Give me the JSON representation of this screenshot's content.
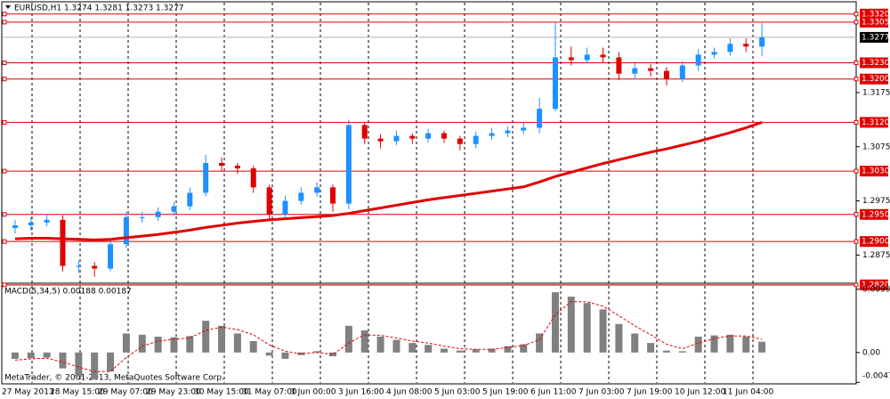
{
  "chart_data": {
    "type": "candlestick",
    "title": "EURUSD,H1  1.3274 1.3281 1.3273 1.3277",
    "ylim": [
      1.2823,
      1.3341
    ],
    "yticks": [
      1.2875,
      1.2975,
      1.3075,
      1.3175
    ],
    "last_price": 1.3277,
    "levels": [
      {
        "value": 1.332,
        "label": "1.3320"
      },
      {
        "value": 1.3305,
        "label": "1.3305"
      },
      {
        "value": 1.323,
        "label": "1.3230"
      },
      {
        "value": 1.32,
        "label": "1.3200"
      },
      {
        "value": 1.312,
        "label": "1.3120"
      },
      {
        "value": 1.303,
        "label": "1.3030"
      },
      {
        "value": 1.295,
        "label": "1.2950"
      },
      {
        "value": 1.29,
        "label": "1.2900"
      },
      {
        "value": 1.282,
        "label": "1.2820"
      }
    ],
    "level_color": "#e00000",
    "up_color": "#1e90ff",
    "down_color": "#e00000",
    "ma_color": "#e00000",
    "categories": [
      "27 May 2013",
      "28 May 15:00",
      "29 May 07:00",
      "29 May 23:00",
      "30 May 15:00",
      "31 May 07:00",
      "3 Jun 00:00",
      "3 Jun 16:00",
      "4 Jun 08:00",
      "5 Jun 03:00",
      "5 Jun 19:00",
      "6 Jun 11:00",
      "7 Jun 03:00",
      "7 Jun 19:00",
      "10 Jun 12:00",
      "11 Jun 04:00"
    ],
    "open": [
      1.2925,
      1.293,
      1.2935,
      1.294,
      1.2855,
      1.2855,
      1.285,
      1.2895,
      1.2945,
      1.2945,
      1.2955,
      1.2965,
      1.299,
      1.3045,
      1.304,
      1.3035,
      1.3,
      1.295,
      1.2975,
      1.299,
      1.3,
      1.297,
      1.3115,
      1.309,
      1.3085,
      1.3095,
      1.309,
      1.31,
      1.309,
      1.308,
      1.3095,
      1.31,
      1.3105,
      1.311,
      1.3145,
      1.324,
      1.3235,
      1.3245,
      1.324,
      1.321,
      1.322,
      1.3215,
      1.32,
      1.3225,
      1.3245,
      1.325,
      1.3265,
      1.326
    ],
    "high": [
      1.294,
      1.2945,
      1.295,
      1.2948,
      1.2865,
      1.2862,
      1.2905,
      1.2955,
      1.2955,
      1.2963,
      1.2973,
      1.3,
      1.306,
      1.3055,
      1.3045,
      1.304,
      1.3005,
      1.2985,
      1.3,
      1.301,
      1.3005,
      1.3125,
      1.312,
      1.3098,
      1.3105,
      1.31,
      1.3108,
      1.3105,
      1.3095,
      1.3103,
      1.311,
      1.3113,
      1.312,
      1.3165,
      1.3305,
      1.326,
      1.3258,
      1.3258,
      1.325,
      1.323,
      1.3228,
      1.3222,
      1.3233,
      1.3255,
      1.3258,
      1.3275,
      1.3275,
      1.3303
    ],
    "low": [
      1.2915,
      1.292,
      1.2928,
      1.2845,
      1.2842,
      1.2835,
      1.2845,
      1.2888,
      1.2935,
      1.2938,
      1.2948,
      1.2958,
      1.2983,
      1.303,
      1.3025,
      1.299,
      1.2942,
      1.2945,
      1.2968,
      1.2983,
      1.2955,
      1.296,
      1.308,
      1.3072,
      1.3078,
      1.308,
      1.3083,
      1.3082,
      1.3068,
      1.3072,
      1.3088,
      1.3093,
      1.3098,
      1.31,
      1.314,
      1.3225,
      1.3228,
      1.323,
      1.3198,
      1.32,
      1.3205,
      1.3188,
      1.3195,
      1.3215,
      1.3238,
      1.3243,
      1.325,
      1.3243
    ],
    "close": [
      1.293,
      1.2935,
      1.294,
      1.2855,
      1.2855,
      1.285,
      1.2895,
      1.2945,
      1.2945,
      1.2955,
      1.2965,
      1.299,
      1.3045,
      1.304,
      1.3035,
      1.3,
      1.295,
      1.2975,
      1.299,
      1.3,
      1.297,
      1.3115,
      1.309,
      1.3085,
      1.3095,
      1.309,
      1.31,
      1.309,
      1.308,
      1.3095,
      1.31,
      1.3105,
      1.311,
      1.3145,
      1.324,
      1.3235,
      1.3245,
      1.324,
      1.321,
      1.322,
      1.3215,
      1.32,
      1.3225,
      1.3245,
      1.325,
      1.3265,
      1.326,
      1.3277
    ],
    "ma": [
      1.2905,
      1.2906,
      1.2906,
      1.2905,
      1.2904,
      1.2903,
      1.2904,
      1.2907,
      1.291,
      1.2913,
      1.2917,
      1.2921,
      1.2926,
      1.293,
      1.2934,
      1.2937,
      1.294,
      1.2942,
      1.2944,
      1.2946,
      1.2948,
      1.2952,
      1.2957,
      1.2962,
      1.2967,
      1.2972,
      1.2977,
      1.2981,
      1.2985,
      1.2989,
      1.2993,
      1.2997,
      1.3001,
      1.301,
      1.302,
      1.3028,
      1.3036,
      1.3044,
      1.3051,
      1.3058,
      1.3065,
      1.3071,
      1.3078,
      1.3085,
      1.3093,
      1.3101,
      1.311,
      1.312
    ],
    "macd": {
      "title": "MACD(5,34,5) 0.00188 0.00187",
      "ylim": [
        -0.0048,
        0.0105
      ],
      "yticks": [
        0.00997,
        {
          "value": 0,
          "label": "0.00"
        },
        -0.00471
      ],
      "hist_color": "#808080",
      "signal_color": "#e00000",
      "hist": [
        -0.001,
        -0.0009,
        -0.0008,
        -0.0025,
        -0.0038,
        -0.0042,
        -0.003,
        0.003,
        0.0028,
        0.0025,
        0.0024,
        0.0026,
        0.005,
        0.0042,
        0.003,
        0.0018,
        -0.0005,
        -0.001,
        -0.0004,
        0.0002,
        -0.0006,
        0.0042,
        0.0035,
        0.0025,
        0.002,
        0.0015,
        0.0012,
        0.0006,
        0.0003,
        0.0005,
        0.0006,
        0.001,
        0.0013,
        0.003,
        0.0095,
        0.0088,
        0.0078,
        0.0068,
        0.0045,
        0.003,
        0.0015,
        0.0003,
        0.0002,
        0.0025,
        0.0027,
        0.0028,
        0.0025,
        0.0017
      ],
      "signal": [
        -0.0012,
        -0.001,
        -0.0009,
        -0.0015,
        -0.0023,
        -0.003,
        -0.003,
        -0.0008,
        0.001,
        0.0018,
        0.0021,
        0.0023,
        0.0035,
        0.004,
        0.0036,
        0.0028,
        0.0012,
        0.0002,
        -0.0002,
        0.0,
        -0.0003,
        0.0015,
        0.0028,
        0.0027,
        0.0023,
        0.0018,
        0.0015,
        0.001,
        0.0006,
        0.0005,
        0.0005,
        0.0008,
        0.0011,
        0.002,
        0.006,
        0.008,
        0.008,
        0.0073,
        0.0058,
        0.0042,
        0.0028,
        0.0013,
        0.0006,
        0.0015,
        0.0022,
        0.0026,
        0.0026,
        0.0021
      ]
    },
    "copyright": "MetaTrader, © 2001-2013, MetaQuotes Software Corp."
  }
}
